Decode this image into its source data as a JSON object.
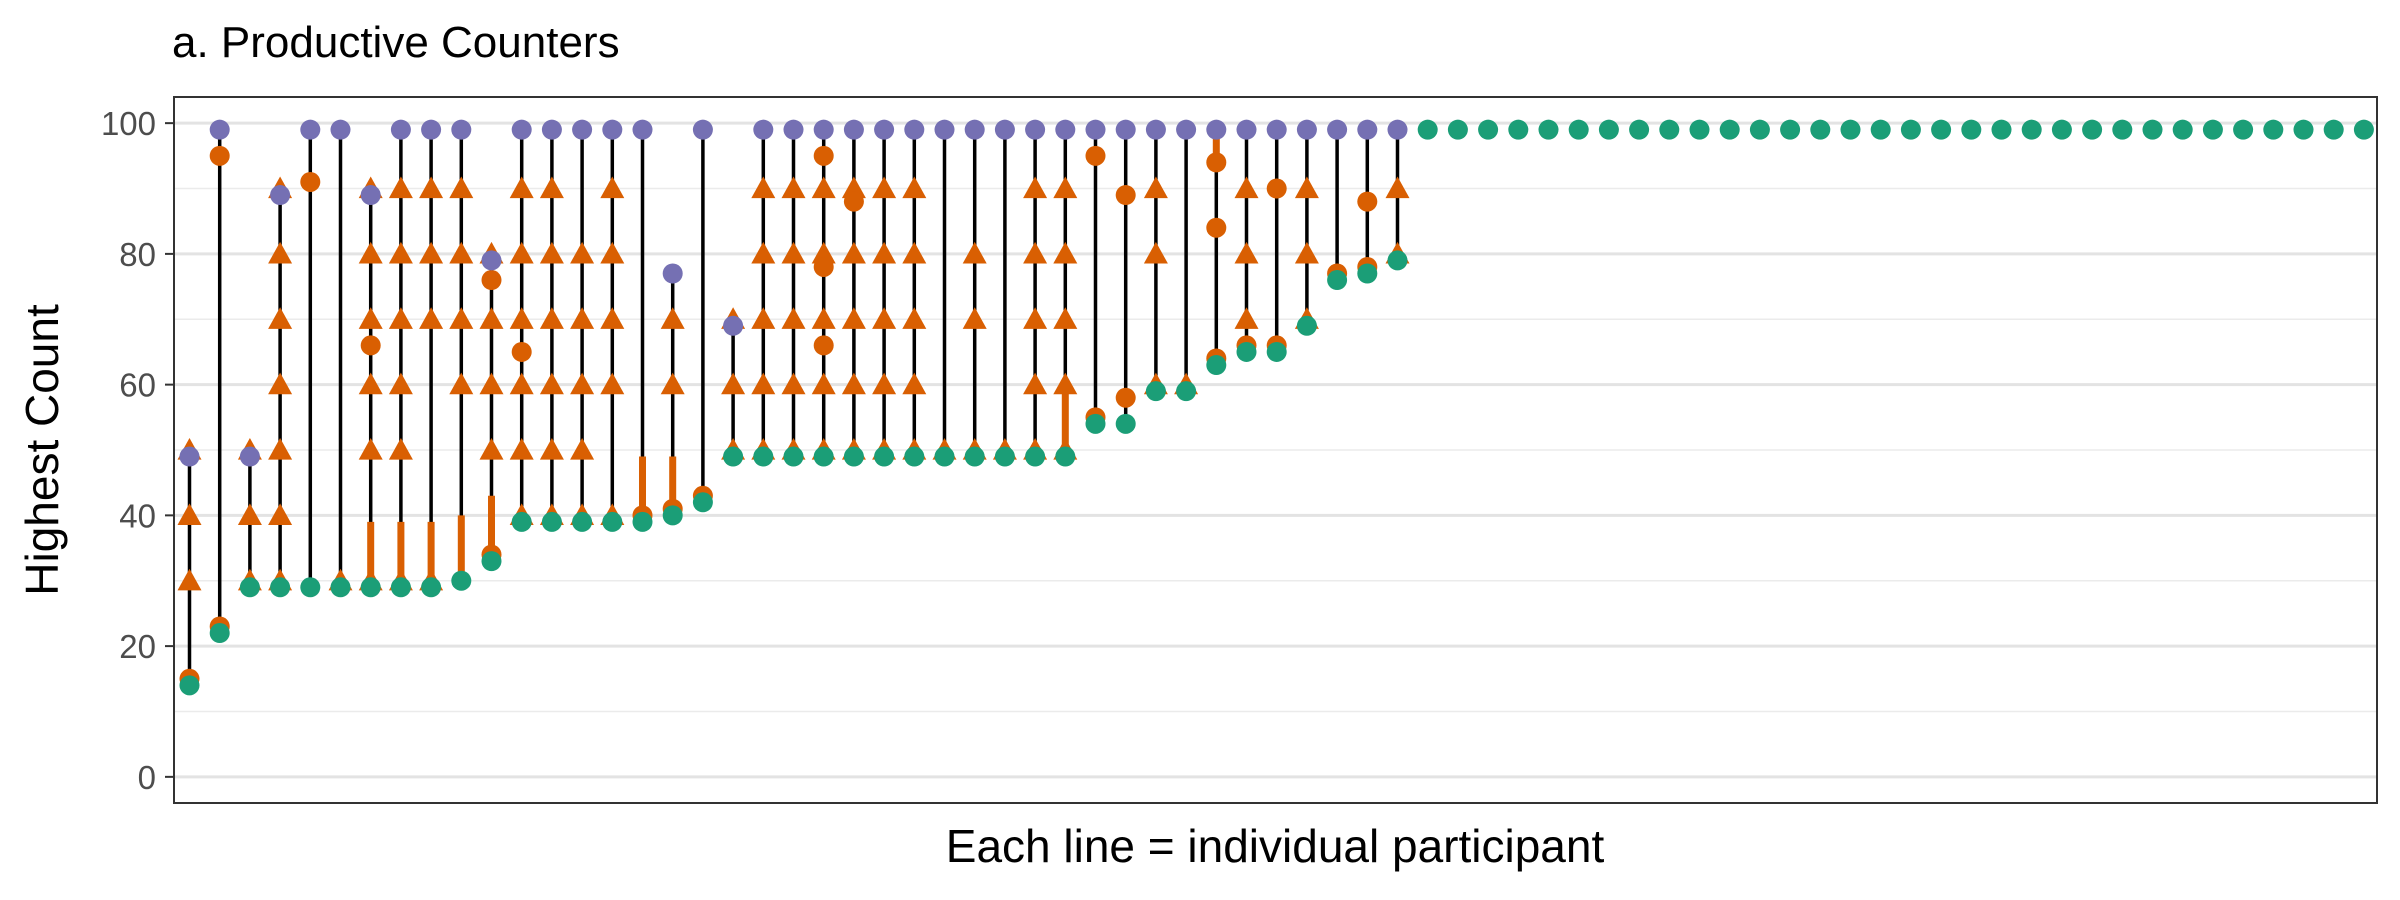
{
  "chart_data": {
    "type": "scatter",
    "title": "a. Productive Counters",
    "xlabel": "Each line = individual participant",
    "ylabel": "Highest Count",
    "ylim": [
      -4,
      104
    ],
    "yticks": [
      0,
      20,
      40,
      60,
      80,
      100
    ],
    "grid": true,
    "legend": "none",
    "colors": {
      "initial": "#1B9E77",
      "final": "#7570B3",
      "prompt_count": "#D95F02",
      "error": "#D95F02",
      "line": "#000000"
    },
    "participants": [
      {
        "initial": 14,
        "final": 49,
        "prompts": [
          30,
          40,
          50
        ],
        "errors": [
          15
        ]
      },
      {
        "initial": 22,
        "final": 99,
        "prompts": [],
        "errors": [
          23,
          95
        ]
      },
      {
        "initial": 29,
        "final": 49,
        "prompts": [
          30,
          40,
          50
        ],
        "errors": []
      },
      {
        "initial": 29,
        "final": 89,
        "prompts": [
          30,
          40,
          50,
          60,
          70,
          80,
          90
        ],
        "errors": []
      },
      {
        "initial": 29,
        "final": 99,
        "prompts": [],
        "errors": [
          91
        ]
      },
      {
        "initial": 29,
        "final": 99,
        "prompts": [
          30
        ],
        "errors": []
      },
      {
        "initial": 29,
        "final": 89,
        "prompts": [
          30,
          50,
          60,
          70,
          80,
          90
        ],
        "errors": [
          66
        ],
        "error_segment": [
          30,
          39
        ]
      },
      {
        "initial": 29,
        "final": 99,
        "prompts": [
          30,
          50,
          60,
          70,
          80,
          90
        ],
        "errors": [],
        "error_segment": [
          30,
          39
        ]
      },
      {
        "initial": 29,
        "final": 99,
        "prompts": [
          30,
          70,
          80,
          90
        ],
        "errors": [],
        "error_segment": [
          30,
          39
        ]
      },
      {
        "initial": 30,
        "final": 99,
        "prompts": [
          60,
          70,
          80,
          90
        ],
        "errors": [],
        "error_segment": [
          31,
          40
        ]
      },
      {
        "initial": 33,
        "final": 79,
        "prompts": [
          50,
          60,
          70,
          80
        ],
        "errors": [
          34,
          76
        ],
        "error_segment": [
          34,
          43
        ]
      },
      {
        "initial": 39,
        "final": 99,
        "prompts": [
          40,
          50,
          60,
          70,
          80,
          90
        ],
        "errors": [
          65
        ]
      },
      {
        "initial": 39,
        "final": 99,
        "prompts": [
          40,
          50,
          60,
          70,
          80,
          90
        ],
        "errors": []
      },
      {
        "initial": 39,
        "final": 99,
        "prompts": [
          40,
          50,
          60,
          70,
          80
        ],
        "errors": []
      },
      {
        "initial": 39,
        "final": 99,
        "prompts": [
          40,
          60,
          70,
          80,
          90
        ],
        "errors": []
      },
      {
        "initial": 39,
        "final": 99,
        "prompts": [],
        "errors": [
          40
        ],
        "error_segment": [
          40,
          49
        ]
      },
      {
        "initial": 40,
        "final": 77,
        "prompts": [
          60,
          70
        ],
        "errors": [
          41
        ],
        "error_segment": [
          41,
          49
        ]
      },
      {
        "initial": 42,
        "final": 99,
        "prompts": [],
        "errors": [
          43
        ]
      },
      {
        "initial": 49,
        "final": 69,
        "prompts": [
          50,
          60,
          70
        ],
        "errors": []
      },
      {
        "initial": 49,
        "final": 99,
        "prompts": [
          50,
          60,
          70,
          80,
          90
        ],
        "errors": []
      },
      {
        "initial": 49,
        "final": 99,
        "prompts": [
          50,
          60,
          70,
          80,
          90
        ],
        "errors": []
      },
      {
        "initial": 49,
        "final": 99,
        "prompts": [
          50,
          60,
          70,
          80,
          90
        ],
        "errors": [
          66,
          78,
          95
        ]
      },
      {
        "initial": 49,
        "final": 99,
        "prompts": [
          50,
          60,
          70,
          80,
          90
        ],
        "errors": [
          88
        ]
      },
      {
        "initial": 49,
        "final": 99,
        "prompts": [
          50,
          60,
          70,
          80,
          90
        ],
        "errors": []
      },
      {
        "initial": 49,
        "final": 99,
        "prompts": [
          50,
          60,
          70,
          80,
          90
        ],
        "errors": []
      },
      {
        "initial": 49,
        "final": 99,
        "prompts": [
          50
        ],
        "errors": []
      },
      {
        "initial": 49,
        "final": 99,
        "prompts": [
          50,
          70,
          80
        ],
        "errors": []
      },
      {
        "initial": 49,
        "final": 99,
        "prompts": [
          50
        ],
        "errors": []
      },
      {
        "initial": 49,
        "final": 99,
        "prompts": [
          50,
          60,
          70,
          80,
          90
        ],
        "errors": []
      },
      {
        "initial": 49,
        "final": 99,
        "prompts": [
          50,
          60,
          70,
          80,
          90
        ],
        "errors": [],
        "error_segment": [
          50,
          59
        ]
      },
      {
        "initial": 54,
        "final": 99,
        "prompts": [],
        "errors": [
          55,
          95
        ]
      },
      {
        "initial": 54,
        "final": 99,
        "prompts": [],
        "errors": [
          58,
          89
        ]
      },
      {
        "initial": 59,
        "final": 99,
        "prompts": [
          60,
          80,
          90
        ],
        "errors": []
      },
      {
        "initial": 59,
        "final": 99,
        "prompts": [
          60
        ],
        "errors": []
      },
      {
        "initial": 63,
        "final": 99,
        "prompts": [],
        "errors": [
          64,
          84,
          94
        ],
        "error_segment": [
          94,
          99
        ]
      },
      {
        "initial": 65,
        "final": 99,
        "prompts": [
          70,
          80,
          90
        ],
        "errors": [
          66
        ]
      },
      {
        "initial": 65,
        "final": 99,
        "prompts": [],
        "errors": [
          66,
          90
        ]
      },
      {
        "initial": 69,
        "final": 99,
        "prompts": [
          70,
          80,
          90
        ],
        "errors": []
      },
      {
        "initial": 76,
        "final": 99,
        "prompts": [],
        "errors": [
          77
        ]
      },
      {
        "initial": 77,
        "final": 99,
        "prompts": [],
        "errors": [
          78,
          88
        ]
      },
      {
        "initial": 79,
        "final": 99,
        "prompts": [
          80,
          90
        ],
        "errors": []
      },
      {
        "initial": 99,
        "final": 99,
        "prompts": [],
        "errors": []
      },
      {
        "initial": 99,
        "final": 99,
        "prompts": [],
        "errors": []
      },
      {
        "initial": 99,
        "final": 99,
        "prompts": [],
        "errors": []
      },
      {
        "initial": 99,
        "final": 99,
        "prompts": [],
        "errors": []
      },
      {
        "initial": 99,
        "final": 99,
        "prompts": [],
        "errors": []
      },
      {
        "initial": 99,
        "final": 99,
        "prompts": [],
        "errors": []
      },
      {
        "initial": 99,
        "final": 99,
        "prompts": [],
        "errors": []
      },
      {
        "initial": 99,
        "final": 99,
        "prompts": [],
        "errors": []
      },
      {
        "initial": 99,
        "final": 99,
        "prompts": [],
        "errors": []
      },
      {
        "initial": 99,
        "final": 99,
        "prompts": [],
        "errors": []
      },
      {
        "initial": 99,
        "final": 99,
        "prompts": [],
        "errors": []
      },
      {
        "initial": 99,
        "final": 99,
        "prompts": [],
        "errors": []
      },
      {
        "initial": 99,
        "final": 99,
        "prompts": [],
        "errors": []
      },
      {
        "initial": 99,
        "final": 99,
        "prompts": [],
        "errors": []
      },
      {
        "initial": 99,
        "final": 99,
        "prompts": [],
        "errors": []
      },
      {
        "initial": 99,
        "final": 99,
        "prompts": [],
        "errors": []
      },
      {
        "initial": 99,
        "final": 99,
        "prompts": [],
        "errors": []
      },
      {
        "initial": 99,
        "final": 99,
        "prompts": [],
        "errors": []
      },
      {
        "initial": 99,
        "final": 99,
        "prompts": [],
        "errors": []
      },
      {
        "initial": 99,
        "final": 99,
        "prompts": [],
        "errors": []
      },
      {
        "initial": 99,
        "final": 99,
        "prompts": [],
        "errors": []
      },
      {
        "initial": 99,
        "final": 99,
        "prompts": [],
        "errors": []
      },
      {
        "initial": 99,
        "final": 99,
        "prompts": [],
        "errors": []
      },
      {
        "initial": 99,
        "final": 99,
        "prompts": [],
        "errors": []
      },
      {
        "initial": 99,
        "final": 99,
        "prompts": [],
        "errors": []
      },
      {
        "initial": 99,
        "final": 99,
        "prompts": [],
        "errors": []
      },
      {
        "initial": 99,
        "final": 99,
        "prompts": [],
        "errors": []
      },
      {
        "initial": 99,
        "final": 99,
        "prompts": [],
        "errors": []
      },
      {
        "initial": 99,
        "final": 99,
        "prompts": [],
        "errors": []
      },
      {
        "initial": 99,
        "final": 99,
        "prompts": [],
        "errors": []
      },
      {
        "initial": 99,
        "final": 99,
        "prompts": [],
        "errors": []
      },
      {
        "initial": 99,
        "final": 99,
        "prompts": [],
        "errors": []
      }
    ]
  }
}
